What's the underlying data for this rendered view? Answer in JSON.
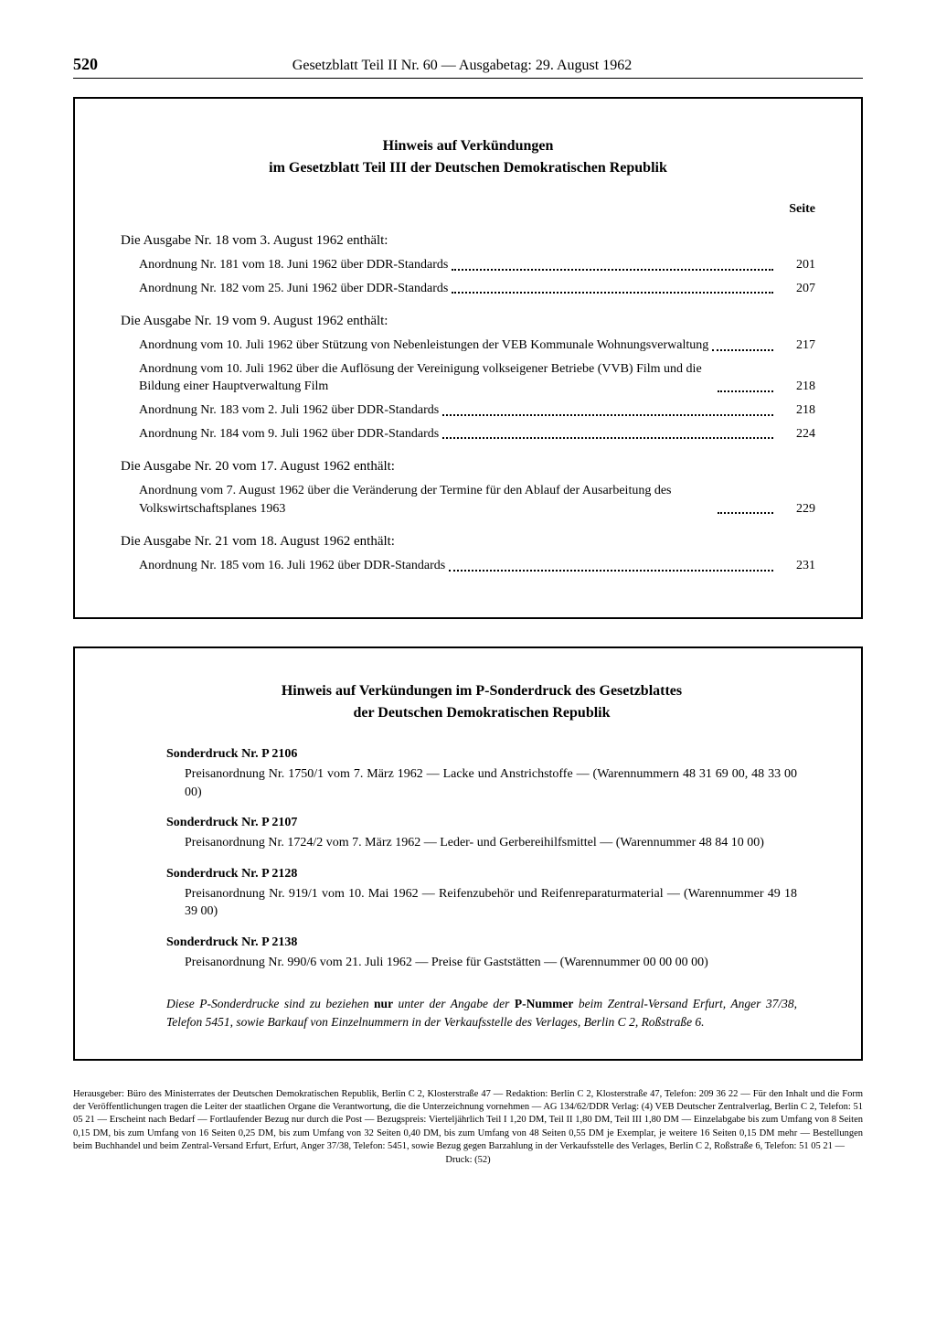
{
  "header": {
    "page_number": "520",
    "title": "Gesetzblatt Teil II Nr. 60 — Ausgabetag: 29. August 1962"
  },
  "box1": {
    "title_line1": "Hinweis auf Verkündungen",
    "title_line2": "im Gesetzblatt Teil III der Deutschen Demokratischen Republik",
    "seite_label": "Seite",
    "sections": [
      {
        "heading": "Die Ausgabe Nr. 18 vom 3. August 1962 enthält:",
        "entries": [
          {
            "text": "Anordnung Nr. 181 vom 18. Juni 1962 über DDR-Standards",
            "page": "201"
          },
          {
            "text": "Anordnung Nr. 182 vom 25. Juni 1962 über DDR-Standards",
            "page": "207"
          }
        ]
      },
      {
        "heading": "Die Ausgabe Nr. 19 vom 9. August 1962 enthält:",
        "entries": [
          {
            "text": "Anordnung vom 10. Juli 1962 über Stützung von Nebenleistungen der VEB Kommunale Wohnungsverwaltung",
            "page": "217"
          },
          {
            "text": "Anordnung vom 10. Juli 1962 über die Auflösung der Vereinigung volkseigener Betriebe (VVB) Film und die Bildung einer Hauptverwaltung Film",
            "page": "218"
          },
          {
            "text": "Anordnung Nr. 183 vom 2. Juli 1962 über DDR-Standards",
            "page": "218"
          },
          {
            "text": "Anordnung Nr. 184 vom 9. Juli 1962 über DDR-Standards",
            "page": "224"
          }
        ]
      },
      {
        "heading": "Die Ausgabe Nr. 20 vom 17. August 1962 enthält:",
        "entries": [
          {
            "text": "Anordnung vom 7. August 1962 über die Veränderung der Termine für den Ablauf der Ausarbeitung des Volkswirtschaftsplanes 1963",
            "page": "229"
          }
        ]
      },
      {
        "heading": "Die Ausgabe Nr. 21 vom 18. August 1962 enthält:",
        "entries": [
          {
            "text": "Anordnung Nr. 185 vom 16. Juli 1962 über DDR-Standards",
            "page": "231"
          }
        ]
      }
    ]
  },
  "box2": {
    "title_line1": "Hinweis auf Verkündungen im P-Sonderdruck des Gesetzblattes",
    "title_line2": "der Deutschen Demokratischen Republik",
    "items": [
      {
        "heading": "Sonderdruck Nr. P 2106",
        "text": "Preisanordnung Nr. 1750/1 vom 7. März 1962 — Lacke und Anstrichstoffe — (Warennummern 48 31 69 00, 48 33 00 00)"
      },
      {
        "heading": "Sonderdruck Nr. P 2107",
        "text": "Preisanordnung Nr. 1724/2 vom 7. März 1962 — Leder- und Gerbereihilfsmittel — (Warennummer 48 84 10 00)"
      },
      {
        "heading": "Sonderdruck Nr. P 2128",
        "text": "Preisanordnung Nr. 919/1 vom 10. Mai 1962 — Reifenzubehör und Reifenreparaturmaterial — (Warennummer 49 18 39 00)"
      },
      {
        "heading": "Sonderdruck Nr. P 2138",
        "text": "Preisanordnung Nr. 990/6 vom 21. Juli 1962 — Preise für Gaststätten — (Warennummer 00 00 00 00)"
      }
    ],
    "note_pre": "Diese P-Sonderdrucke sind zu beziehen ",
    "note_bold1": "nur",
    "note_mid1": " unter der Angabe der ",
    "note_bold2": "P-Nummer",
    "note_post": " beim Zentral-Versand Erfurt, Anger 37/38, Telefon 5451, sowie Barkauf von Einzelnummern in der Verkaufsstelle des Verlages, Berlin C 2, Roßstraße 6."
  },
  "imprint": {
    "text": "Herausgeber: Büro des Ministerrates der Deutschen Demokratischen Republik, Berlin C 2, Klosterstraße 47 — Redaktion: Berlin C 2, Klosterstraße 47, Telefon: 209 36 22 — Für den Inhalt und die Form der Veröffentlichungen tragen die Leiter der staatlichen Organe die Verantwortung, die die Unterzeichnung vornehmen — AG 134/62/DDR Verlag: (4) VEB Deutscher Zentralverlag, Berlin C 2, Telefon: 51 05 21 — Erscheint nach Bedarf — Fortlaufender Bezug nur durch die Post — Bezugspreis: Vierteljährlich Teil I 1,20 DM, Teil II 1,80 DM, Teil III 1,80 DM — Einzelabgabe bis zum Umfang von 8 Seiten 0,15 DM, bis zum Umfang von 16 Seiten 0,25 DM, bis zum Umfang von 32 Seiten 0,40 DM, bis zum Umfang von 48 Seiten 0,55 DM je Exemplar, je weitere 16 Seiten 0,15 DM mehr — Bestellungen beim Buchhandel und beim Zentral-Versand Erfurt, Erfurt, Anger 37/38, Telefon: 5451, sowie Bezug gegen Barzahlung in der Verkaufsstelle des Verlages, Berlin C 2, Roßstraße 6, Telefon: 51 05 21 —",
    "druck": "Druck: (52)"
  }
}
